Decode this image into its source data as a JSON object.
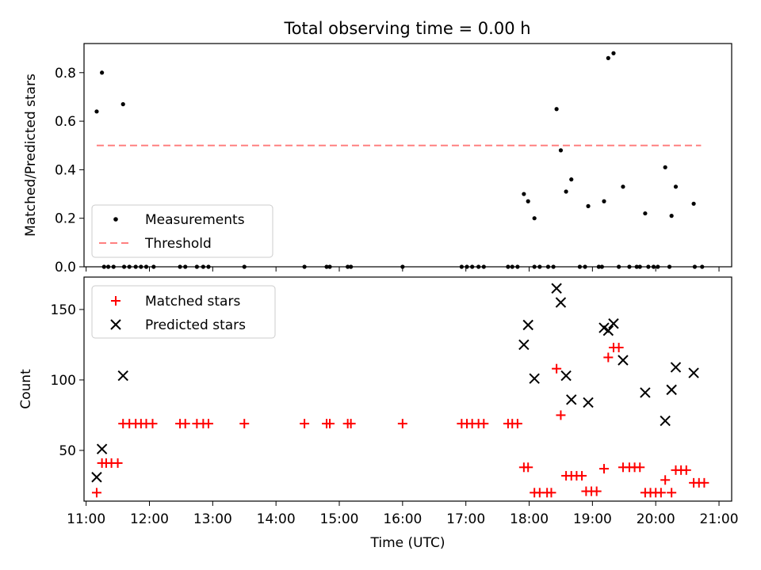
{
  "title": "Total observing time = 0.00 h",
  "chart_data": [
    {
      "type": "scatter",
      "ylabel": "Matched/Predicted stars",
      "ylim": [
        0,
        0.92
      ],
      "y_ticks": [
        "0.0",
        "0.2",
        "0.4",
        "0.6",
        "0.8"
      ],
      "y_tick_values": [
        0,
        0.2,
        0.4,
        0.6,
        0.8
      ],
      "xlim": [
        "10:58",
        "21:12"
      ],
      "legend": [
        "Measurements",
        "Threshold"
      ],
      "legend_position": "lower-left",
      "series": [
        {
          "name": "Measurements",
          "color": "#000000",
          "points": [
            [
              "11:10",
              0.64
            ],
            [
              "11:15",
              0.8
            ],
            [
              "11:35",
              0.67
            ],
            [
              "11:17",
              0
            ],
            [
              "11:21",
              0
            ],
            [
              "11:26",
              0
            ],
            [
              "11:36",
              0
            ],
            [
              "11:41",
              0
            ],
            [
              "11:47",
              0
            ],
            [
              "11:52",
              0
            ],
            [
              "11:57",
              0
            ],
            [
              "12:04",
              0
            ],
            [
              "12:29",
              0
            ],
            [
              "12:34",
              0
            ],
            [
              "12:45",
              0
            ],
            [
              "12:51",
              0
            ],
            [
              "12:56",
              0
            ],
            [
              "13:30",
              0
            ],
            [
              "14:27",
              0
            ],
            [
              "14:48",
              0
            ],
            [
              "14:51",
              0
            ],
            [
              "15:08",
              0
            ],
            [
              "15:11",
              0
            ],
            [
              "16:00",
              0
            ],
            [
              "16:56",
              0
            ],
            [
              "17:01",
              0
            ],
            [
              "17:06",
              0
            ],
            [
              "17:12",
              0
            ],
            [
              "17:17",
              0
            ],
            [
              "17:40",
              0
            ],
            [
              "17:44",
              0
            ],
            [
              "17:49",
              0
            ],
            [
              "18:05",
              0
            ],
            [
              "18:10",
              0
            ],
            [
              "18:18",
              0
            ],
            [
              "18:23",
              0
            ],
            [
              "18:48",
              0
            ],
            [
              "18:53",
              0
            ],
            [
              "19:06",
              0
            ],
            [
              "19:09",
              0
            ],
            [
              "19:25",
              0
            ],
            [
              "19:35",
              0
            ],
            [
              "19:42",
              0
            ],
            [
              "19:45",
              0
            ],
            [
              "19:53",
              0
            ],
            [
              "19:58",
              0
            ],
            [
              "20:02",
              0
            ],
            [
              "20:13",
              0
            ],
            [
              "20:37",
              0
            ],
            [
              "20:44",
              0
            ],
            [
              "17:55",
              0.3
            ],
            [
              "17:59",
              0.27
            ],
            [
              "18:05",
              0.2
            ],
            [
              "18:26",
              0.65
            ],
            [
              "18:30",
              0.48
            ],
            [
              "18:35",
              0.31
            ],
            [
              "18:40",
              0.36
            ],
            [
              "18:56",
              0.25
            ],
            [
              "19:11",
              0.27
            ],
            [
              "19:15",
              0.86
            ],
            [
              "19:20",
              0.88
            ],
            [
              "19:29",
              0.33
            ],
            [
              "19:50",
              0.22
            ],
            [
              "20:09",
              0.41
            ],
            [
              "20:15",
              0.21
            ],
            [
              "20:19",
              0.33
            ],
            [
              "20:36",
              0.26
            ]
          ]
        }
      ],
      "threshold": {
        "name": "Threshold",
        "value": 0.5,
        "x_range": [
          "11:10",
          "20:43"
        ],
        "color": "#ff8080"
      }
    },
    {
      "type": "scatter",
      "ylabel": "Count",
      "xlabel": "Time (UTC)",
      "ylim": [
        14,
        173
      ],
      "y_ticks": [
        "50",
        "100",
        "150"
      ],
      "y_tick_values": [
        50,
        100,
        150
      ],
      "xlim": [
        "10:58",
        "21:12"
      ],
      "x_ticks": [
        "11:00",
        "12:00",
        "13:00",
        "14:00",
        "15:00",
        "16:00",
        "17:00",
        "18:00",
        "19:00",
        "20:00",
        "21:00"
      ],
      "legend": [
        "Matched stars",
        "Predicted stars"
      ],
      "legend_position": "upper-left",
      "series": [
        {
          "name": "Matched stars",
          "color": "#ff0000",
          "marker": "plus",
          "points": [
            [
              "11:10",
              20
            ],
            [
              "11:15",
              41
            ],
            [
              "11:19",
              41
            ],
            [
              "11:24",
              41
            ],
            [
              "11:30",
              41
            ],
            [
              "11:35",
              69
            ],
            [
              "11:41",
              69
            ],
            [
              "11:47",
              69
            ],
            [
              "11:52",
              69
            ],
            [
              "11:57",
              69
            ],
            [
              "12:03",
              69
            ],
            [
              "12:29",
              69
            ],
            [
              "12:34",
              69
            ],
            [
              "12:45",
              69
            ],
            [
              "12:51",
              69
            ],
            [
              "12:56",
              69
            ],
            [
              "13:30",
              69
            ],
            [
              "14:27",
              69
            ],
            [
              "14:48",
              69
            ],
            [
              "14:51",
              69
            ],
            [
              "15:08",
              69
            ],
            [
              "15:11",
              69
            ],
            [
              "16:00",
              69
            ],
            [
              "16:56",
              69
            ],
            [
              "17:01",
              69
            ],
            [
              "17:06",
              69
            ],
            [
              "17:12",
              69
            ],
            [
              "17:17",
              69
            ],
            [
              "17:40",
              69
            ],
            [
              "17:44",
              69
            ],
            [
              "17:49",
              69
            ],
            [
              "17:55",
              38
            ],
            [
              "17:59",
              38
            ],
            [
              "18:05",
              20
            ],
            [
              "18:10",
              20
            ],
            [
              "18:17",
              20
            ],
            [
              "18:21",
              20
            ],
            [
              "18:26",
              108
            ],
            [
              "18:30",
              75
            ],
            [
              "18:35",
              32
            ],
            [
              "18:40",
              32
            ],
            [
              "18:45",
              32
            ],
            [
              "18:50",
              32
            ],
            [
              "18:54",
              21
            ],
            [
              "18:59",
              21
            ],
            [
              "19:04",
              21
            ],
            [
              "19:11",
              37
            ],
            [
              "19:15",
              116
            ],
            [
              "19:20",
              123
            ],
            [
              "19:25",
              123
            ],
            [
              "19:29",
              38
            ],
            [
              "19:35",
              38
            ],
            [
              "19:40",
              38
            ],
            [
              "19:45",
              38
            ],
            [
              "19:50",
              20
            ],
            [
              "19:55",
              20
            ],
            [
              "20:00",
              20
            ],
            [
              "20:05",
              20
            ],
            [
              "20:09",
              29
            ],
            [
              "20:15",
              20
            ],
            [
              "20:19",
              36
            ],
            [
              "20:24",
              36
            ],
            [
              "20:29",
              36
            ],
            [
              "20:36",
              27
            ],
            [
              "20:41",
              27
            ],
            [
              "20:46",
              27
            ]
          ]
        },
        {
          "name": "Predicted stars",
          "color": "#000000",
          "marker": "x",
          "points": [
            [
              "11:10",
              31
            ],
            [
              "11:15",
              51
            ],
            [
              "11:35",
              103
            ],
            [
              "17:55",
              125
            ],
            [
              "17:59",
              139
            ],
            [
              "18:05",
              101
            ],
            [
              "18:26",
              165
            ],
            [
              "18:30",
              155
            ],
            [
              "18:35",
              103
            ],
            [
              "18:40",
              86
            ],
            [
              "18:56",
              84
            ],
            [
              "19:11",
              137
            ],
            [
              "19:15",
              135
            ],
            [
              "19:20",
              140
            ],
            [
              "19:29",
              114
            ],
            [
              "19:50",
              91
            ],
            [
              "20:09",
              71
            ],
            [
              "20:15",
              93
            ],
            [
              "20:19",
              109
            ],
            [
              "20:36",
              105
            ]
          ]
        }
      ]
    }
  ]
}
